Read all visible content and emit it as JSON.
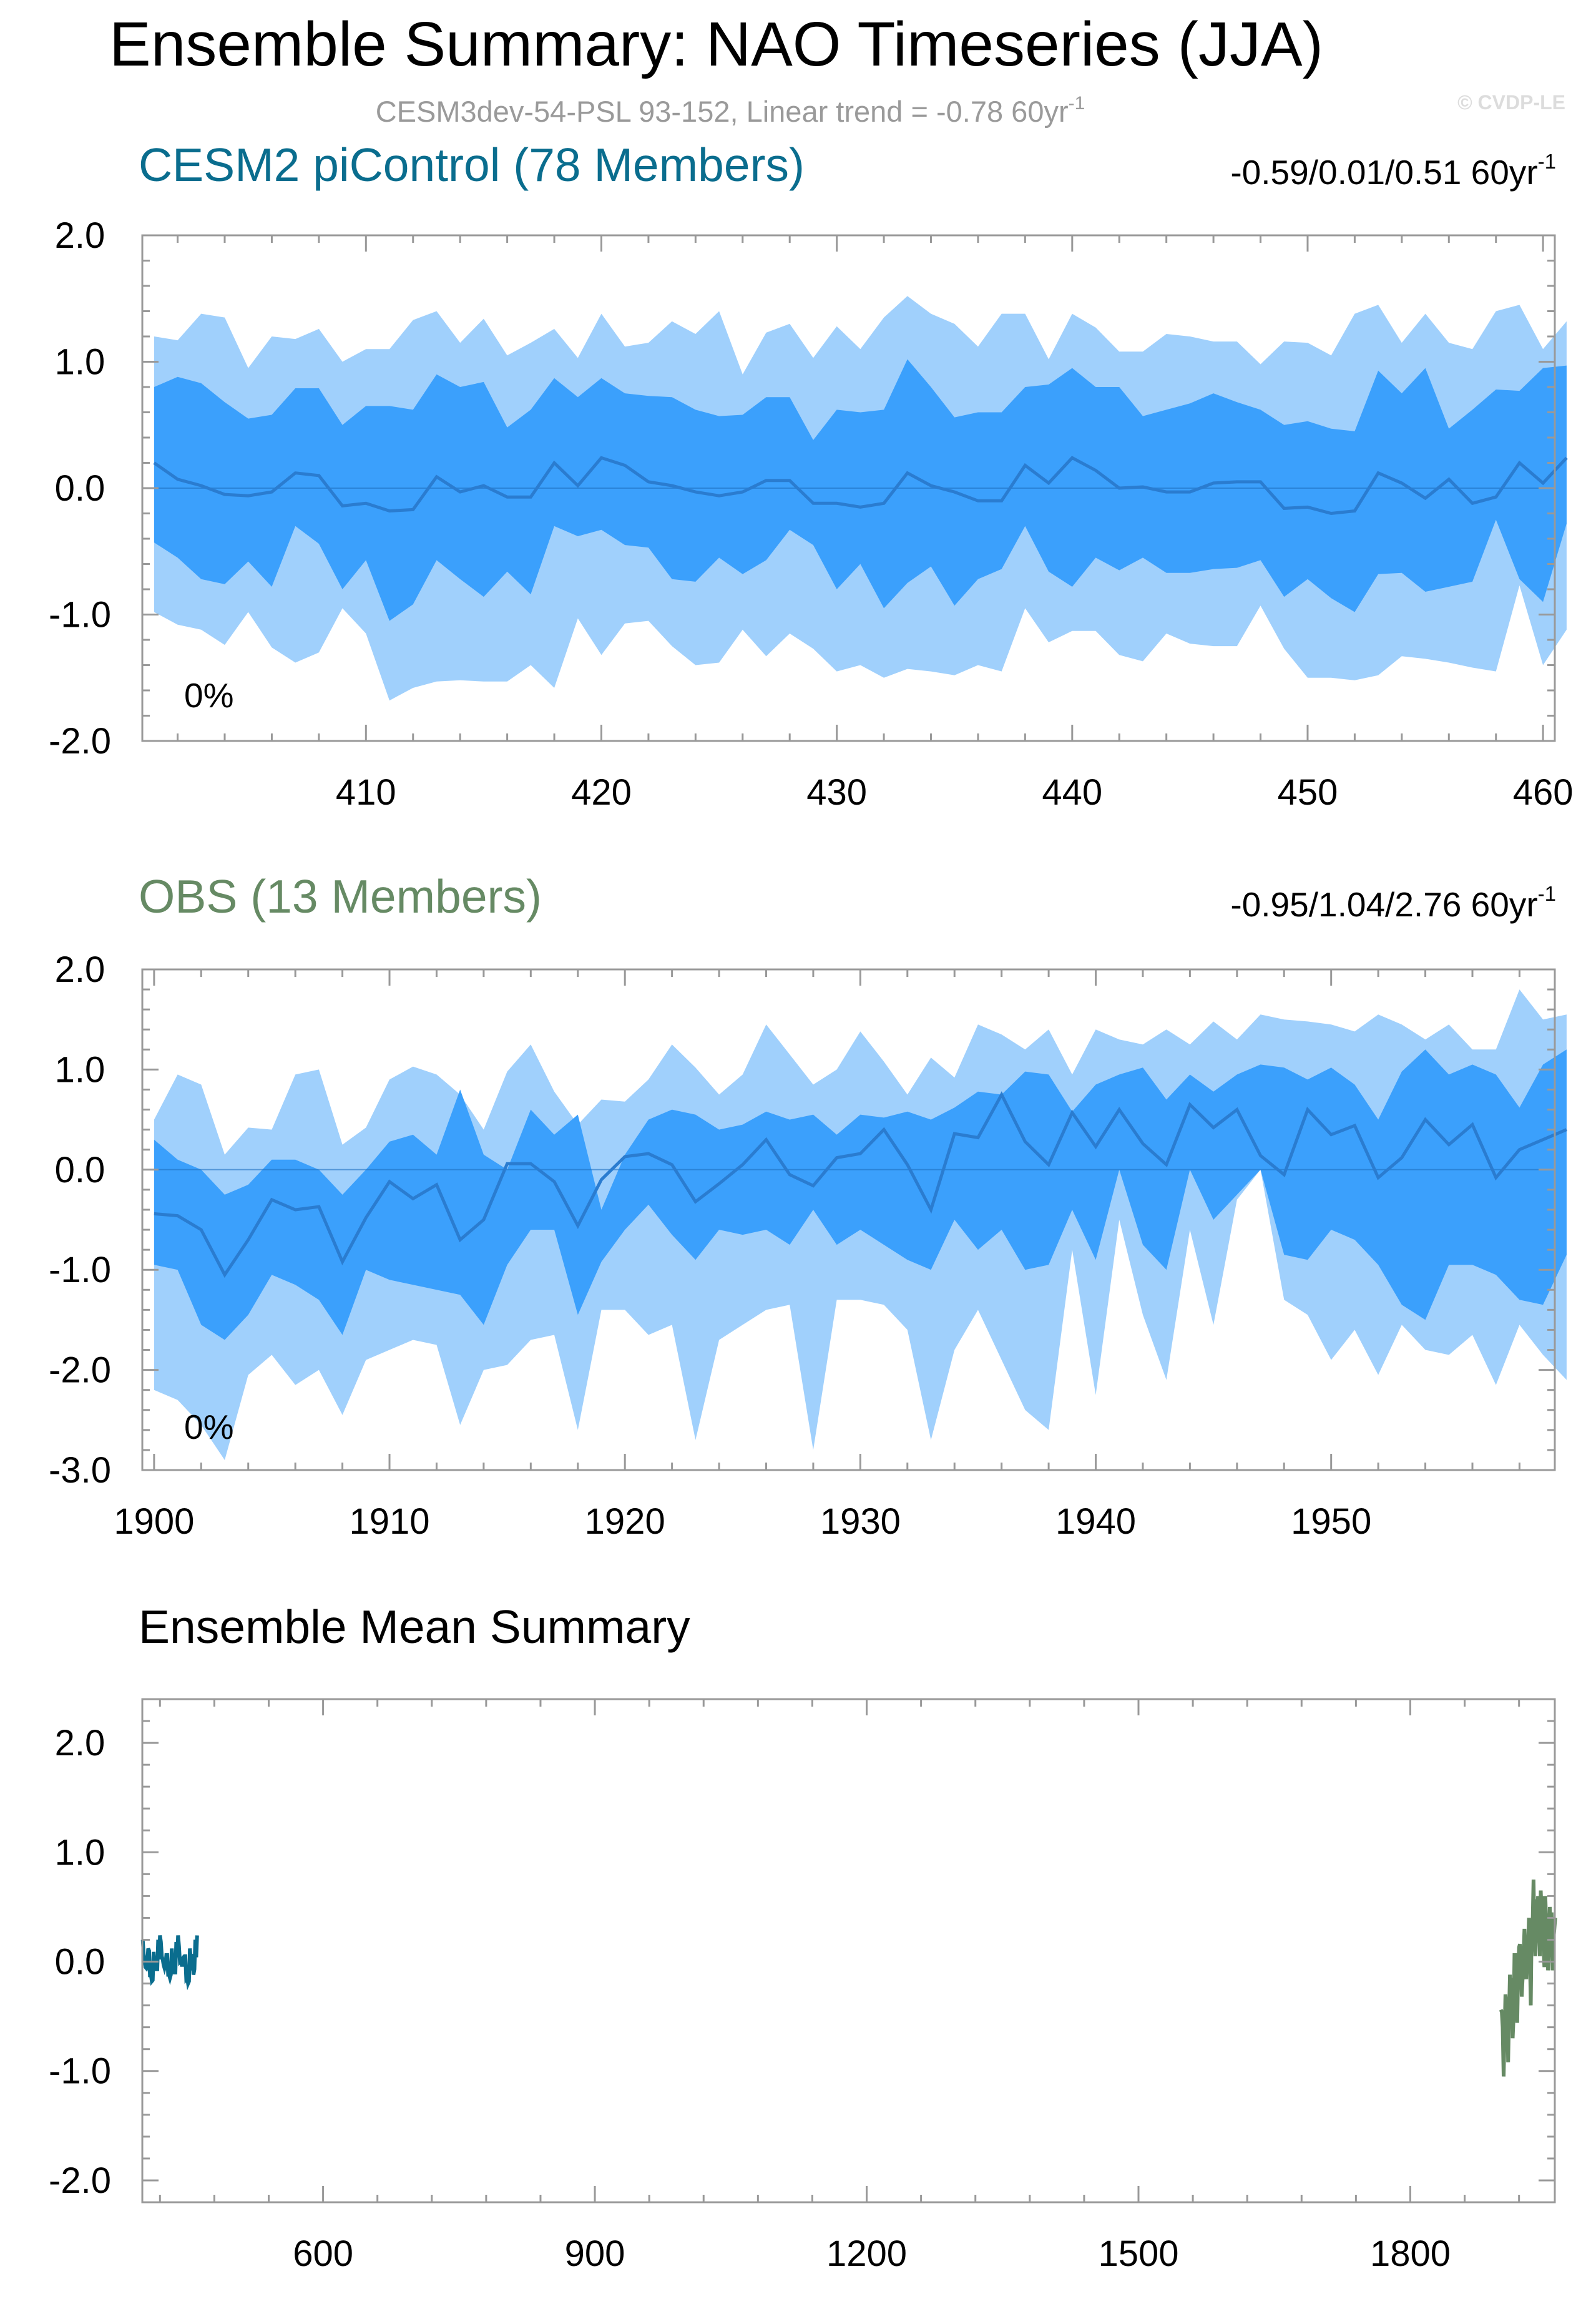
{
  "header": {
    "title": "Ensemble Summary: NAO Timeseries (JJA)",
    "subtitle": "CESM3dev-54-PSL 93-152, Linear trend = -0.78 60yr",
    "subtitle_sup": "-1",
    "watermark": "© CVDP-LE"
  },
  "colors": {
    "outer_band": "#a0d0fc",
    "inner_band": "#3ba0fc",
    "mean_line": "#2a7cd0",
    "cesm_label": "#0a6d8e",
    "obs_label": "#668a64",
    "frame": "#999999"
  },
  "chart_data": [
    {
      "id": "cesm2",
      "type": "area",
      "title": "CESM2 piControl (78 Members)",
      "title_color": "#0a6d8e",
      "stat": "-0.59/0.01/0.51 60yr",
      "stat_sup": "-1",
      "percent_label": "0%",
      "x_start": 401,
      "xlim": [
        400.5,
        460.5
      ],
      "ylim": [
        -2.0,
        2.0
      ],
      "yticks": [
        2.0,
        1.0,
        0.0,
        -1.0,
        -2.0
      ],
      "ytick_labels": [
        "2.0",
        "1.0",
        "0.0",
        "-1.0",
        "-2.0"
      ],
      "xticks": [
        410,
        420,
        430,
        440,
        450,
        460
      ],
      "xtick_labels": [
        "410",
        "420",
        "430",
        "440",
        "450",
        "460"
      ],
      "series": [
        {
          "name": "max",
          "values": [
            1.2,
            1.17,
            1.38,
            1.35,
            0.95,
            1.2,
            1.18,
            1.26,
            1.0,
            1.1,
            1.1,
            1.33,
            1.4,
            1.15,
            1.34,
            1.05,
            1.15,
            1.26,
            1.03,
            1.38,
            1.12,
            1.15,
            1.32,
            1.22,
            1.4,
            0.9,
            1.23,
            1.3,
            1.03,
            1.28,
            1.1,
            1.35,
            1.52,
            1.38,
            1.3,
            1.12,
            1.38,
            1.38,
            1.02,
            1.38,
            1.27,
            1.08,
            1.08,
            1.22,
            1.2,
            1.16,
            1.16,
            0.98,
            1.16,
            1.15,
            1.05,
            1.38,
            1.45,
            1.15,
            1.38,
            1.15,
            1.1,
            1.4,
            1.45,
            1.1,
            1.32
          ]
        },
        {
          "name": "p90",
          "values": [
            0.8,
            0.88,
            0.83,
            0.68,
            0.55,
            0.58,
            0.79,
            0.79,
            0.5,
            0.65,
            0.65,
            0.62,
            0.9,
            0.8,
            0.84,
            0.48,
            0.62,
            0.87,
            0.72,
            0.87,
            0.75,
            0.73,
            0.72,
            0.62,
            0.57,
            0.58,
            0.72,
            0.72,
            0.38,
            0.62,
            0.6,
            0.62,
            1.02,
            0.8,
            0.56,
            0.6,
            0.6,
            0.8,
            0.82,
            0.95,
            0.8,
            0.8,
            0.57,
            0.62,
            0.67,
            0.75,
            0.68,
            0.62,
            0.5,
            0.53,
            0.47,
            0.45,
            0.93,
            0.75,
            0.95,
            0.47,
            0.62,
            0.78,
            0.77,
            0.95,
            0.97
          ]
        },
        {
          "name": "mean",
          "values": [
            0.2,
            0.07,
            0.02,
            -0.05,
            -0.06,
            -0.03,
            0.12,
            0.1,
            -0.14,
            -0.12,
            -0.18,
            -0.17,
            0.09,
            -0.03,
            0.02,
            -0.07,
            -0.07,
            0.2,
            0.02,
            0.24,
            0.18,
            0.05,
            0.02,
            -0.03,
            -0.06,
            -0.03,
            0.06,
            0.06,
            -0.12,
            -0.12,
            -0.15,
            -0.12,
            0.12,
            0.02,
            -0.03,
            -0.1,
            -0.1,
            0.18,
            0.04,
            0.24,
            0.14,
            0.0,
            0.01,
            -0.03,
            -0.03,
            0.04,
            0.05,
            0.05,
            -0.16,
            -0.15,
            -0.2,
            -0.18,
            0.12,
            0.04,
            -0.08,
            0.07,
            -0.12,
            -0.07,
            0.2,
            0.04,
            0.24
          ]
        },
        {
          "name": "p10",
          "values": [
            -0.43,
            -0.55,
            -0.72,
            -0.76,
            -0.58,
            -0.78,
            -0.3,
            -0.44,
            -0.8,
            -0.57,
            -1.05,
            -0.92,
            -0.57,
            -0.72,
            -0.86,
            -0.66,
            -0.84,
            -0.3,
            -0.38,
            -0.33,
            -0.45,
            -0.47,
            -0.72,
            -0.74,
            -0.55,
            -0.68,
            -0.57,
            -0.33,
            -0.45,
            -0.8,
            -0.6,
            -0.95,
            -0.75,
            -0.62,
            -0.93,
            -0.72,
            -0.64,
            -0.3,
            -0.66,
            -0.78,
            -0.55,
            -0.65,
            -0.55,
            -0.67,
            -0.67,
            -0.64,
            -0.63,
            -0.57,
            -0.86,
            -0.72,
            -0.87,
            -0.98,
            -0.68,
            -0.67,
            -0.82,
            -0.78,
            -0.74,
            -0.25,
            -0.72,
            -0.9,
            -0.28
          ]
        },
        {
          "name": "min",
          "values": [
            -0.98,
            -1.08,
            -1.12,
            -1.24,
            -0.98,
            -1.26,
            -1.38,
            -1.3,
            -0.95,
            -1.15,
            -1.68,
            -1.58,
            -1.53,
            -1.52,
            -1.53,
            -1.53,
            -1.4,
            -1.58,
            -1.03,
            -1.32,
            -1.07,
            -1.05,
            -1.25,
            -1.4,
            -1.38,
            -1.12,
            -1.33,
            -1.15,
            -1.27,
            -1.45,
            -1.4,
            -1.5,
            -1.43,
            -1.45,
            -1.48,
            -1.4,
            -1.45,
            -0.95,
            -1.22,
            -1.13,
            -1.13,
            -1.32,
            -1.37,
            -1.15,
            -1.23,
            -1.25,
            -1.25,
            -0.93,
            -1.27,
            -1.5,
            -1.5,
            -1.52,
            -1.48,
            -1.33,
            -1.35,
            -1.38,
            -1.42,
            -1.45,
            -0.77,
            -1.4,
            -1.12
          ]
        }
      ]
    },
    {
      "id": "obs",
      "type": "area",
      "title": "OBS (13 Members)",
      "title_color": "#668a64",
      "stat": "-0.95/1.04/2.76 60yr",
      "stat_sup": "-1",
      "percent_label": "0%",
      "x_start": 1900,
      "xlim": [
        1899.5,
        1959.5
      ],
      "ylim": [
        -3.0,
        2.0
      ],
      "yticks": [
        2.0,
        1.0,
        0.0,
        -1.0,
        -2.0,
        -3.0
      ],
      "ytick_labels": [
        "2.0",
        "1.0",
        "0.0",
        "-1.0",
        "-2.0",
        "-3.0"
      ],
      "xticks": [
        1900,
        1910,
        1920,
        1930,
        1940,
        1950
      ],
      "xtick_labels": [
        "1900",
        "1910",
        "1920",
        "1930",
        "1940",
        "1950"
      ],
      "series": [
        {
          "name": "max",
          "values": [
            0.5,
            0.95,
            0.85,
            0.15,
            0.42,
            0.4,
            0.95,
            1.0,
            0.25,
            0.42,
            0.9,
            1.03,
            0.95,
            0.75,
            0.4,
            0.98,
            1.25,
            0.78,
            0.45,
            0.7,
            0.68,
            0.9,
            1.25,
            1.02,
            0.75,
            0.95,
            1.45,
            1.15,
            0.85,
            1.0,
            1.38,
            1.08,
            0.75,
            1.12,
            0.92,
            1.45,
            1.35,
            1.2,
            1.4,
            0.95,
            1.4,
            1.3,
            1.25,
            1.4,
            1.25,
            1.48,
            1.3,
            1.55,
            1.5,
            1.48,
            1.45,
            1.38,
            1.55,
            1.45,
            1.3,
            1.45,
            1.2,
            1.2,
            1.8,
            1.5,
            1.55
          ]
        },
        {
          "name": "p90",
          "values": [
            0.3,
            0.1,
            0.0,
            -0.25,
            -0.15,
            0.1,
            0.1,
            0.0,
            -0.25,
            0.0,
            0.28,
            0.35,
            0.15,
            0.8,
            0.15,
            0.0,
            0.6,
            0.35,
            0.55,
            -0.4,
            0.15,
            0.5,
            0.6,
            0.55,
            0.4,
            0.45,
            0.58,
            0.5,
            0.55,
            0.35,
            0.55,
            0.52,
            0.58,
            0.5,
            0.62,
            0.78,
            0.75,
            0.98,
            0.95,
            0.58,
            0.85,
            0.95,
            1.02,
            0.7,
            0.95,
            0.78,
            0.95,
            1.05,
            1.02,
            0.9,
            1.02,
            0.85,
            0.5,
            0.98,
            1.2,
            0.95,
            1.05,
            0.95,
            0.62,
            1.05,
            1.2
          ]
        },
        {
          "name": "mean",
          "values": [
            -0.44,
            -0.46,
            -0.6,
            -1.05,
            -0.7,
            -0.3,
            -0.4,
            -0.37,
            -0.92,
            -0.48,
            -0.12,
            -0.29,
            -0.15,
            -0.7,
            -0.5,
            0.06,
            0.06,
            -0.12,
            -0.56,
            -0.1,
            0.13,
            0.16,
            0.05,
            -0.32,
            -0.14,
            0.05,
            0.3,
            -0.05,
            -0.16,
            0.12,
            0.16,
            0.4,
            0.05,
            -0.4,
            0.36,
            0.32,
            0.75,
            0.28,
            0.05,
            0.57,
            0.23,
            0.6,
            0.26,
            0.05,
            0.65,
            0.42,
            0.6,
            0.14,
            -0.05,
            0.6,
            0.35,
            0.44,
            -0.08,
            0.12,
            0.5,
            0.25,
            0.45,
            -0.08,
            0.2,
            0.3,
            0.4
          ]
        },
        {
          "name": "p10",
          "values": [
            -0.95,
            -1.0,
            -1.55,
            -1.7,
            -1.45,
            -1.05,
            -1.15,
            -1.3,
            -1.65,
            -1.0,
            -1.1,
            -1.15,
            -1.2,
            -1.25,
            -1.55,
            -0.95,
            -0.6,
            -0.6,
            -1.45,
            -0.92,
            -0.6,
            -0.35,
            -0.65,
            -0.9,
            -0.6,
            -0.65,
            -0.6,
            -0.75,
            -0.4,
            -0.75,
            -0.6,
            -0.75,
            -0.9,
            -1.0,
            -0.5,
            -0.8,
            -0.6,
            -1.0,
            -0.95,
            -0.4,
            -0.9,
            0.0,
            -0.75,
            -1.0,
            0.0,
            -0.5,
            -0.25,
            0.0,
            -0.85,
            -0.9,
            -0.6,
            -0.7,
            -0.95,
            -1.35,
            -1.5,
            -0.95,
            -0.95,
            -1.05,
            -1.3,
            -1.35,
            -0.85
          ]
        },
        {
          "name": "min",
          "values": [
            -2.2,
            -2.3,
            -2.55,
            -2.9,
            -2.05,
            -1.85,
            -2.15,
            -2.0,
            -2.45,
            -1.9,
            -1.8,
            -1.7,
            -1.75,
            -2.55,
            -2.0,
            -1.95,
            -1.7,
            -1.65,
            -2.6,
            -1.4,
            -1.4,
            -1.65,
            -1.55,
            -2.7,
            -1.7,
            -1.55,
            -1.4,
            -1.35,
            -2.8,
            -1.3,
            -1.3,
            -1.35,
            -1.6,
            -2.7,
            -1.8,
            -1.4,
            -1.9,
            -2.4,
            -2.6,
            -0.8,
            -2.25,
            -0.5,
            -1.45,
            -2.1,
            -0.6,
            -1.55,
            -0.3,
            0.0,
            -1.3,
            -1.45,
            -1.9,
            -1.6,
            -2.05,
            -1.55,
            -1.8,
            -1.85,
            -1.65,
            -2.15,
            -1.55,
            -1.85,
            -2.1
          ]
        }
      ]
    },
    {
      "id": "ensemble-mean",
      "type": "line",
      "title": "Ensemble Mean Summary",
      "title_color": "#000000",
      "xlim": [
        400.5,
        1959.5
      ],
      "ylim": [
        -2.2,
        2.4
      ],
      "yticks": [
        2.0,
        1.0,
        0.0,
        -1.0,
        -2.0
      ],
      "ytick_labels": [
        "2.0",
        "1.0",
        "0.0",
        "-1.0",
        "-2.0"
      ],
      "xticks": [
        600,
        900,
        1200,
        1500,
        1800
      ],
      "xtick_labels": [
        "600",
        "900",
        "1200",
        "1500",
        "1800"
      ],
      "series": [
        {
          "name": "CESM2 piControl",
          "color": "#0a6d8e",
          "source": "cesm2"
        },
        {
          "name": "OBS",
          "color": "#668a64",
          "source": "obs"
        }
      ]
    }
  ]
}
